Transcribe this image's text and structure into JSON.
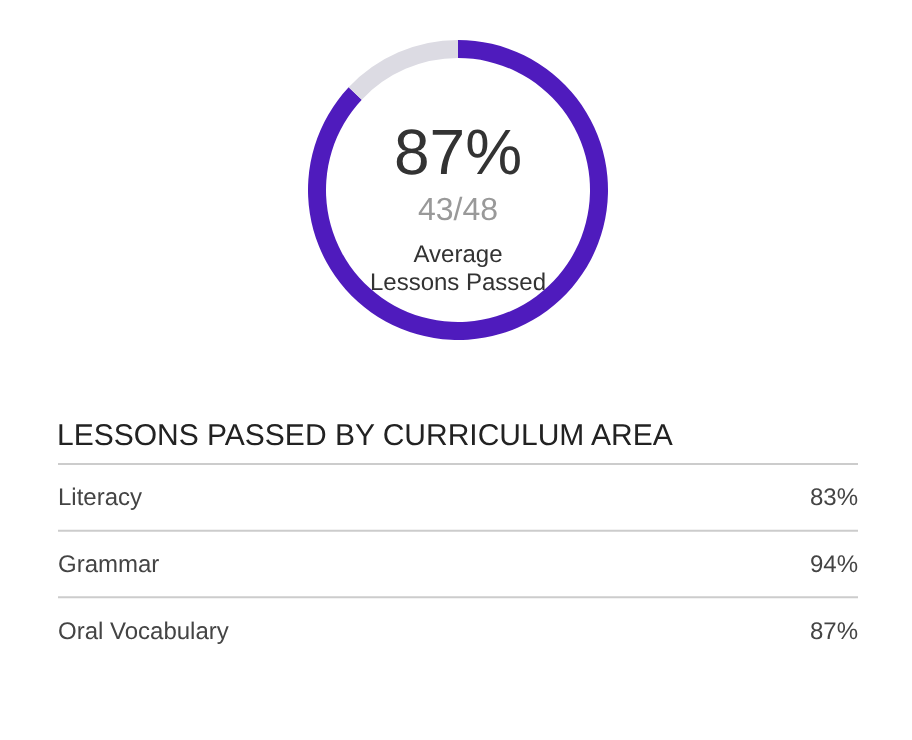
{
  "chart_data": [
    {
      "type": "donut",
      "categories": [
        null,
        null
      ],
      "values": [
        87,
        13
      ],
      "colors": [
        "#4f1bbd",
        "#dcdbe3"
      ],
      "annotations": [
        "87%",
        "43/48",
        "Average\nLessons Passed"
      ]
    },
    {
      "type": "other",
      "title": "LESSONS PASSED BY CURRICULUM AREA",
      "categories": [
        "Literacy",
        "Grammar",
        "Oral Vocabulary"
      ],
      "value_labels": [
        "83%",
        "94%",
        "87%"
      ]
    }
  ]
}
